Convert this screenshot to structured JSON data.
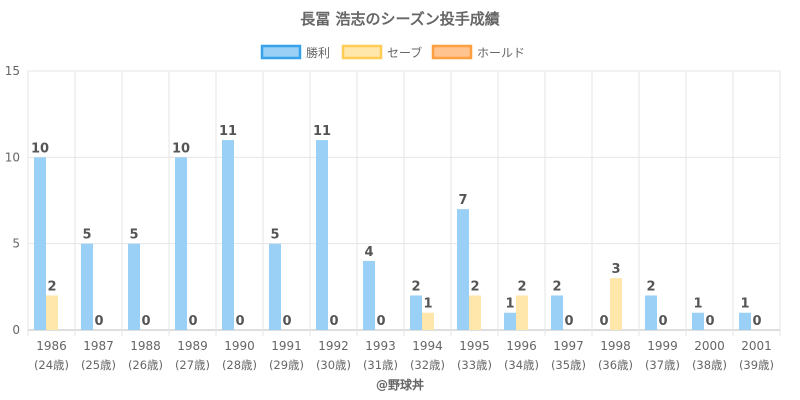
{
  "chart_data": {
    "type": "bar",
    "title": "長冨 浩志のシーズン投手成績",
    "categories": [
      "1986",
      "1987",
      "1988",
      "1989",
      "1990",
      "1991",
      "1992",
      "1993",
      "1994",
      "1995",
      "1996",
      "1997",
      "1998",
      "1999",
      "2000",
      "2001"
    ],
    "category_sublabels": [
      "(24歳)",
      "(25歳)",
      "(26歳)",
      "(27歳)",
      "(28歳)",
      "(29歳)",
      "(30歳)",
      "(31歳)",
      "(32歳)",
      "(33歳)",
      "(34歳)",
      "(35歳)",
      "(36歳)",
      "(37歳)",
      "(38歳)",
      "(39歳)"
    ],
    "series": [
      {
        "name": "勝利",
        "color": "#9ad0f5",
        "border": "#36a2eb",
        "values": [
          10,
          5,
          5,
          10,
          11,
          5,
          11,
          4,
          2,
          7,
          1,
          2,
          0,
          2,
          1,
          1
        ]
      },
      {
        "name": "セーブ",
        "color": "#ffe6aa",
        "border": "#ffcd56",
        "values": [
          2,
          0,
          0,
          0,
          0,
          0,
          0,
          0,
          1,
          2,
          2,
          0,
          3,
          0,
          0,
          0
        ]
      },
      {
        "name": "ホールド",
        "color": "#ffc38f",
        "border": "#ff9f40",
        "values": [
          null,
          null,
          null,
          null,
          null,
          null,
          null,
          null,
          null,
          null,
          null,
          null,
          null,
          null,
          null,
          null
        ]
      }
    ],
    "ylim": [
      0,
      15
    ],
    "yticks": [
      0,
      5,
      10,
      15
    ],
    "grid": true,
    "legend_position": "top",
    "xlabel": "",
    "ylabel": ""
  },
  "credit": "@野球丼"
}
